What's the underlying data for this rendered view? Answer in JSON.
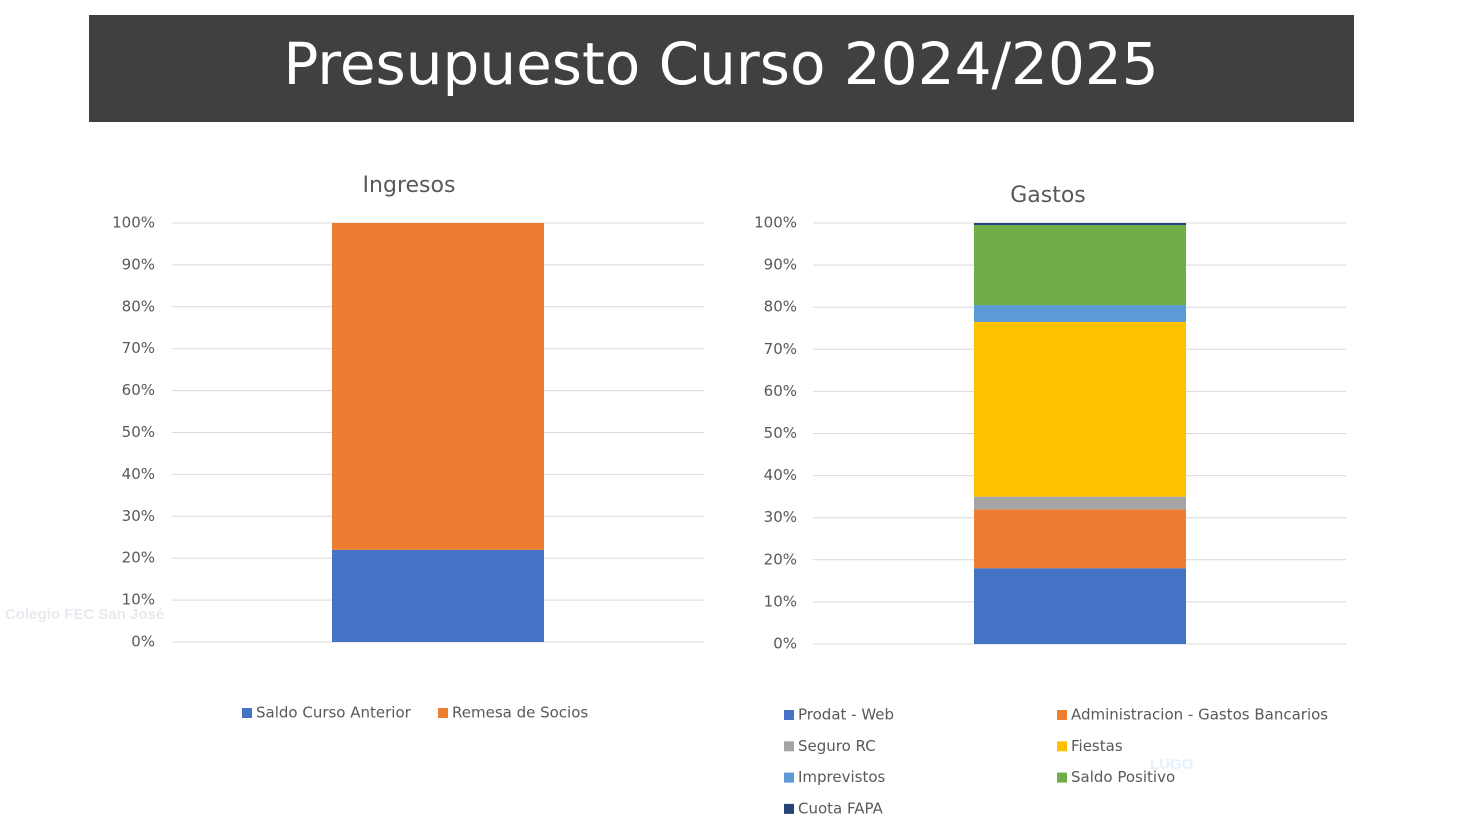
{
  "title": "Presupuesto Curso 2024/2025",
  "watermark": [
    "Colegio FEC San José",
    "LUGO"
  ],
  "chart_data": [
    {
      "type": "stacked-bar",
      "title": "Ingresos",
      "ylim": [
        0,
        100
      ],
      "yticks": [
        {
          "value": 0,
          "label": "0%"
        },
        {
          "value": 10,
          "label": "10%"
        },
        {
          "value": 20,
          "label": "20%"
        },
        {
          "value": 30,
          "label": "30%"
        },
        {
          "value": 40,
          "label": "40%"
        },
        {
          "value": 50,
          "label": "50%"
        },
        {
          "value": 60,
          "label": "60%"
        },
        {
          "value": 70,
          "label": "70%"
        },
        {
          "value": 80,
          "label": "80%"
        },
        {
          "value": 90,
          "label": "90%"
        },
        {
          "value": 100,
          "label": "100%"
        }
      ],
      "grid": true,
      "series": [
        {
          "name": "Saldo Curso Anterior",
          "color": "#4472c4",
          "values": [
            22
          ]
        },
        {
          "name": "Remesa de Socios",
          "color": "#ed7d31",
          "values": [
            78
          ]
        }
      ]
    },
    {
      "type": "stacked-bar",
      "title": "Gastos",
      "ylim": [
        0,
        100
      ],
      "yticks": [
        {
          "value": 0,
          "label": "0%"
        },
        {
          "value": 10,
          "label": "10%"
        },
        {
          "value": 20,
          "label": "20%"
        },
        {
          "value": 30,
          "label": "30%"
        },
        {
          "value": 40,
          "label": "40%"
        },
        {
          "value": 50,
          "label": "50%"
        },
        {
          "value": 60,
          "label": "60%"
        },
        {
          "value": 70,
          "label": "70%"
        },
        {
          "value": 80,
          "label": "80%"
        },
        {
          "value": 90,
          "label": "90%"
        },
        {
          "value": 100,
          "label": "100%"
        }
      ],
      "grid": true,
      "series": [
        {
          "name": "Prodat - Web",
          "color": "#4472c4",
          "values": [
            18
          ]
        },
        {
          "name": "Administracion  - Gastos Bancarios",
          "color": "#ed7d31",
          "values": [
            14
          ]
        },
        {
          "name": "Seguro RC",
          "color": "#a5a5a5",
          "values": [
            3
          ]
        },
        {
          "name": "Fiestas",
          "color": "#ffc000",
          "values": [
            41.5
          ]
        },
        {
          "name": "Imprevistos",
          "color": "#5b9bd5",
          "values": [
            4
          ]
        },
        {
          "name": "Saldo Positivo",
          "color": "#70ad47",
          "values": [
            19
          ]
        },
        {
          "name": "Cuota FAPA",
          "color": "#264478",
          "values": [
            0.5
          ]
        }
      ]
    }
  ]
}
